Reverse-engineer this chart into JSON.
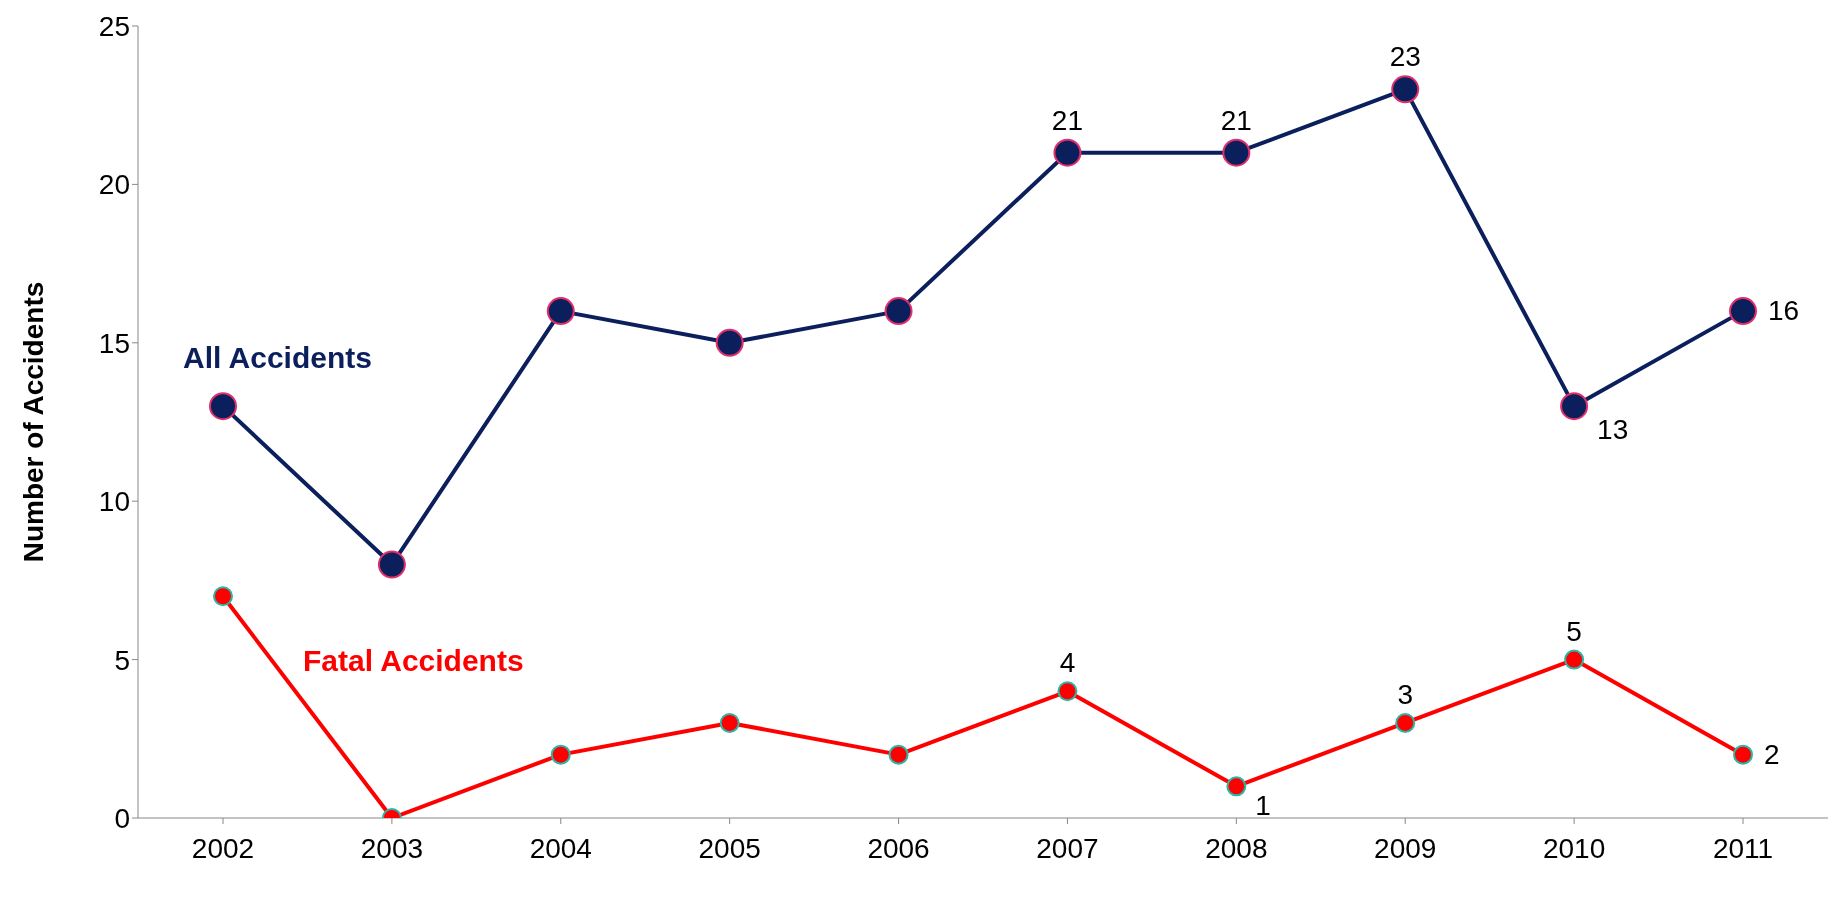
{
  "chart_data": {
    "type": "line",
    "ylabel": "Number of Accidents",
    "categories": [
      "2002",
      "2003",
      "2004",
      "2005",
      "2006",
      "2007",
      "2008",
      "2009",
      "2010",
      "2011"
    ],
    "series": [
      {
        "name": "All Accidents",
        "color": "#0b1f5c",
        "values": [
          13,
          8,
          16,
          15,
          16,
          21,
          21,
          23,
          13,
          16
        ],
        "value_labels": [
          null,
          null,
          null,
          null,
          null,
          "21",
          "21",
          "23",
          "13",
          "16"
        ]
      },
      {
        "name": "Fatal Accidents",
        "color": "#ff0000",
        "values": [
          7,
          0,
          2,
          3,
          2,
          4,
          1,
          3,
          5,
          2
        ],
        "value_labels": [
          null,
          null,
          null,
          null,
          null,
          "4",
          "1",
          "3",
          "5",
          "2"
        ]
      }
    ],
    "ylim": [
      0,
      25
    ],
    "yticks": [
      0,
      5,
      10,
      15,
      20,
      25
    ],
    "grid": false,
    "legend": false,
    "marker": "circle",
    "line_style": "solid"
  }
}
